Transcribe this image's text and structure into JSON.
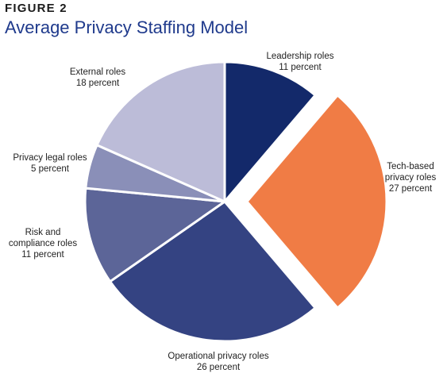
{
  "figure": {
    "label": "FIGURE 2",
    "title": "Average Privacy Staffing Model"
  },
  "chart_data": {
    "type": "pie",
    "title": "Average Privacy Staffing Model",
    "legend": "none",
    "slices": [
      {
        "line1": "Leadership roles",
        "line2": "",
        "value_text": "11 percent",
        "value": 11,
        "color": "#13296a",
        "exploded": false
      },
      {
        "line1": "Tech-based",
        "line2": "privacy roles",
        "value_text": "27 percent",
        "value": 27,
        "color": "#f07c45",
        "exploded": true
      },
      {
        "line1": "Operational privacy roles",
        "line2": "",
        "value_text": "26 percent",
        "value": 26,
        "color": "#344382",
        "exploded": false
      },
      {
        "line1": "Risk and",
        "line2": "compliance roles",
        "value_text": "11 percent",
        "value": 11,
        "color": "#5c6598",
        "exploded": false
      },
      {
        "line1": "Privacy legal roles",
        "line2": "",
        "value_text": "5 percent",
        "value": 5,
        "color": "#8a8fb8",
        "exploded": false
      },
      {
        "line1": "External roles",
        "line2": "",
        "value_text": "18 percent",
        "value": 18,
        "color": "#bcbcd8",
        "exploded": false
      }
    ]
  }
}
